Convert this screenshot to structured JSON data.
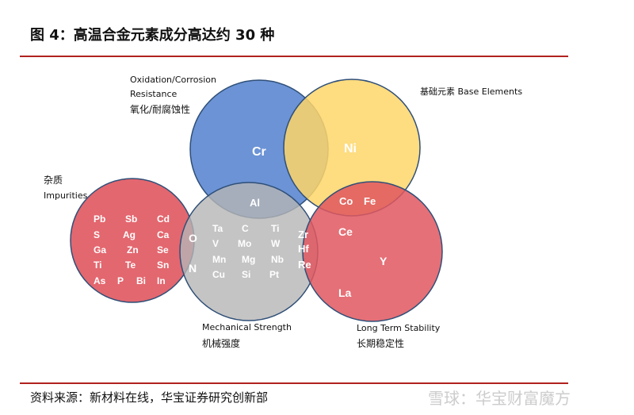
{
  "title": "图 4：高温合金元素成分高达约 30 种",
  "labels": {
    "oxidation_en1": "Oxidation/Corrosion",
    "oxidation_en2": "Resistance",
    "oxidation_cn": "氧化/耐腐蚀性",
    "base": "基础元素  Base Elements",
    "impurities_cn": "杂质",
    "impurities_en": "Impurities",
    "mechanical_en": "Mechanical Strength",
    "mechanical_cn": "机械强度",
    "stability_en": "Long Term Stability",
    "stability_cn": "长期稳定性"
  },
  "colors": {
    "oxidation": "#5b87d0",
    "base": "#fed66a",
    "impurities": "#e0575f",
    "mechanical": "#b5b5b5",
    "stability": "#e0575f",
    "rule": "#b0221f"
  },
  "elements": {
    "oxidation": [
      "Cr"
    ],
    "base": [
      "Ni"
    ],
    "oxidation_mechanical": [
      "Al"
    ],
    "base_stability": [
      "Co",
      "Fe"
    ],
    "impurities": [
      "Pb",
      "Sb",
      "Cd",
      "S",
      "Ag",
      "Ca",
      "Ga",
      "Zn",
      "Se",
      "Ti",
      "Te",
      "Sn",
      "As",
      "P",
      "Bi",
      "In"
    ],
    "impurities_mechanical": [
      "O",
      "N"
    ],
    "mechanical": [
      "Ta",
      "C",
      "Ti",
      "V",
      "Mo",
      "W",
      "Mn",
      "Mg",
      "Nb",
      "Cu",
      "Si",
      "Pt"
    ],
    "mechanical_stability": [
      "Zr",
      "Hf",
      "Re"
    ],
    "stability": [
      "Ce",
      "Y",
      "La"
    ]
  },
  "source": "资料来源：新材料在线，华宝证券研究创新部",
  "watermark": "雪球：华宝财富魔方"
}
